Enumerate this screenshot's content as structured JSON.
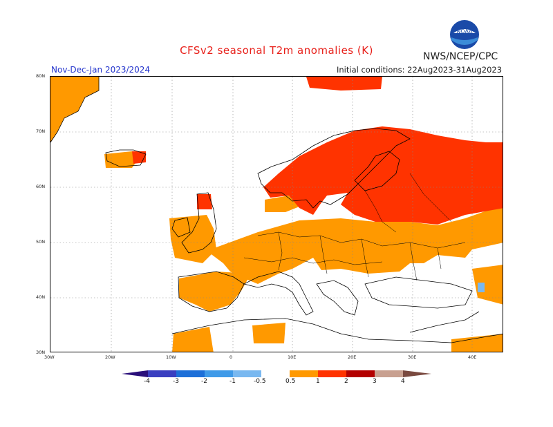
{
  "title": "CFSv2 seasonal T2m anomalies (K)",
  "agency": "NWS/NCEP/CPC",
  "logo_text": "NOAA",
  "period": "Nov-Dec-Jan 2023/2024",
  "initial_conditions": "Initial conditions: 22Aug2023-31Aug2023",
  "lat_labels": [
    "80N",
    "70N",
    "60N",
    "50N",
    "40N",
    "30N"
  ],
  "lon_labels": [
    "30W",
    "20W",
    "10W",
    "0",
    "10E",
    "20E",
    "30E",
    "40E"
  ],
  "legend": {
    "labels": [
      "-4",
      "-3",
      "-2",
      "-1",
      "-0.5",
      "0.5",
      "1",
      "2",
      "3",
      "4"
    ],
    "colors": {
      "below_-4": "#2a0f7a",
      "-4_-3": "#3a3fc0",
      "-3_-2": "#1d6fd8",
      "-2_-1": "#3f9ae8",
      "-1_-0.5": "#79b8f0",
      "-0.5_0.5": "#ffffff",
      "0.5_1": "#ff9900",
      "1_2": "#ff3300",
      "2_3": "#b30000",
      "3_4": "#c8a090",
      "above_4": "#7a4a40"
    }
  }
}
